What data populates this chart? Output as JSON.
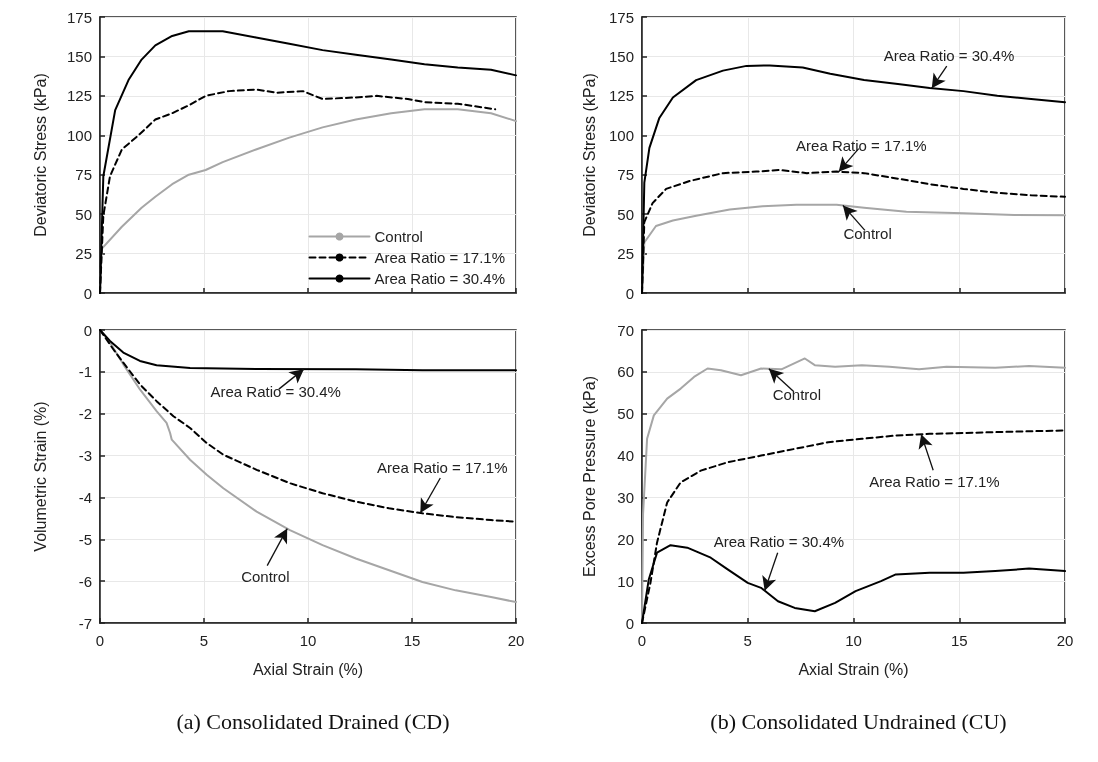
{
  "chart_data": [
    {
      "type": "line",
      "ylabel": "Deviatoric Stress (kPa)",
      "xlim": [
        0,
        20
      ],
      "xticks": [
        0,
        5,
        10,
        15,
        20
      ],
      "ylim": [
        0,
        175
      ],
      "yticks": [
        0,
        25,
        50,
        75,
        100,
        125,
        150,
        175
      ],
      "grid": true,
      "legend": "bottom right",
      "tick_labels": "y",
      "marker": "none",
      "series": [
        {
          "name": "Control",
          "color": "#a6a6a6",
          "line_style": "solid",
          "x": [
            0,
            0.08,
            1.05,
            2.0,
            2.66,
            3.47,
            4.27,
            5.08,
            5.9,
            7.5,
            9.1,
            10.7,
            12.3,
            14,
            15.6,
            17.2,
            18.8,
            20
          ],
          "values": [
            0,
            28,
            42,
            54,
            61,
            69,
            75,
            78,
            83,
            91,
            98.5,
            105,
            110,
            114,
            116.5,
            116.5,
            114,
            109
          ]
        },
        {
          "name": "Area Ratio = 17.1%",
          "color": "#000000",
          "line_style": "dashed",
          "x": [
            0,
            0.16,
            0.48,
            1.05,
            1.85,
            2.66,
            3.47,
            4.27,
            5.08,
            6.2,
            7.5,
            8.5,
            9.76,
            10.7,
            12.3,
            13.3,
            14.8,
            15.6,
            17.2,
            19
          ],
          "values": [
            0,
            49,
            74,
            91,
            100,
            110,
            114,
            119,
            125,
            128,
            129,
            127,
            128,
            123,
            124,
            125,
            123,
            121,
            120,
            116.5
          ]
        },
        {
          "name": "Area Ratio = 30.4%",
          "color": "#000000",
          "line_style": "solid",
          "x": [
            0,
            0.16,
            0.73,
            1.37,
            2.0,
            2.66,
            3.47,
            4.27,
            5.9,
            7.5,
            9.1,
            10.7,
            12.3,
            14,
            15.6,
            17.2,
            18.8,
            20
          ],
          "values": [
            0,
            74,
            116,
            135,
            148,
            157,
            163,
            166,
            166,
            162,
            158,
            154,
            151,
            148,
            145,
            143,
            141.5,
            138
          ]
        }
      ]
    },
    {
      "type": "line",
      "ylabel": "Deviatoric Stress (kPa)",
      "xlim": [
        0,
        20
      ],
      "xticks": [
        0,
        5,
        10,
        15,
        20
      ],
      "ylim": [
        0,
        175
      ],
      "yticks": [
        0,
        25,
        50,
        75,
        100,
        125,
        150,
        175
      ],
      "grid": true,
      "tick_labels": "y",
      "marker": "none",
      "series": [
        {
          "name": "Control",
          "color": "#a6a6a6",
          "line_style": "solid",
          "x": [
            0,
            0.11,
            0.66,
            1.46,
            2.56,
            4.15,
            5.7,
            7.3,
            9.2,
            10.5,
            12.5,
            15.2,
            17.6,
            20
          ],
          "values": [
            0,
            32,
            42.5,
            46,
            49,
            53,
            55,
            56,
            56,
            54,
            51.5,
            50.5,
            49.5,
            49.3
          ]
        },
        {
          "name": "Area Ratio = 17.1%",
          "color": "#000000",
          "line_style": "dashed",
          "x": [
            0,
            0.11,
            0.5,
            1.14,
            2.25,
            3.83,
            5.4,
            6.5,
            7.8,
            9.2,
            10.5,
            12.1,
            13.6,
            15.2,
            16.8,
            18.4,
            20
          ],
          "values": [
            0,
            45,
            57,
            66,
            71,
            76,
            77,
            78,
            76,
            77,
            76,
            72.5,
            69,
            66,
            63.5,
            62,
            61
          ]
        },
        {
          "name": "Area Ratio = 30.4%",
          "color": "#000000",
          "line_style": "solid",
          "x": [
            0,
            0.11,
            0.35,
            0.82,
            1.46,
            2.56,
            3.83,
            4.94,
            6.04,
            7.6,
            8.9,
            10.5,
            12.1,
            13.6,
            15.2,
            16.8,
            18.4,
            20
          ],
          "values": [
            0,
            70,
            92,
            111,
            124,
            135,
            141,
            144,
            144.3,
            143,
            139,
            135,
            132.5,
            130,
            128,
            125,
            123,
            121
          ]
        }
      ]
    },
    {
      "type": "line",
      "title": "(a) Consolidated Drained (CD)",
      "xlabel": "Axial Strain (%)",
      "ylabel": "Volumetric Strain (%)",
      "xlim": [
        0,
        20
      ],
      "xticks": [
        0,
        5,
        10,
        15,
        20
      ],
      "ylim": [
        -7,
        0
      ],
      "yticks": [
        -7,
        -6,
        -5,
        -4,
        -3,
        -2,
        -1,
        0
      ],
      "grid": true,
      "marker": "none",
      "series": [
        {
          "name": "Control",
          "color": "#a6a6a6",
          "line_style": "solid",
          "x": [
            0,
            0.48,
            1.12,
            1.92,
            2.72,
            3.2,
            3.37,
            3.45,
            4.33,
            5.13,
            5.93,
            7.53,
            9.13,
            10.7,
            12.3,
            13.9,
            15.5,
            17.1,
            18.8,
            20
          ],
          "values": [
            0,
            -0.3,
            -0.82,
            -1.42,
            -1.94,
            -2.22,
            -2.46,
            -2.62,
            -3.1,
            -3.46,
            -3.78,
            -4.34,
            -4.78,
            -5.14,
            -5.46,
            -5.74,
            -6.02,
            -6.22,
            -6.38,
            -6.5
          ]
        },
        {
          "name": "Area Ratio = 17.1%",
          "color": "#000000",
          "line_style": "dashed",
          "x": [
            0,
            0.64,
            1.12,
            1.92,
            2.72,
            3.53,
            4.33,
            5.13,
            5.93,
            7.53,
            9.13,
            10.7,
            12.3,
            13.9,
            15.5,
            17.1,
            18.8,
            20
          ],
          "values": [
            0,
            -0.46,
            -0.78,
            -1.3,
            -1.7,
            -2.06,
            -2.34,
            -2.7,
            -2.98,
            -3.34,
            -3.66,
            -3.9,
            -4.1,
            -4.26,
            -4.38,
            -4.47,
            -4.54,
            -4.58
          ]
        },
        {
          "name": "Area Ratio = 30.4%",
          "color": "#000000",
          "line_style": "solid",
          "x": [
            0,
            0.48,
            1.12,
            1.92,
            2.72,
            4.33,
            7.53,
            12.3,
            15.5,
            20
          ],
          "values": [
            0,
            -0.26,
            -0.54,
            -0.74,
            -0.84,
            -0.91,
            -0.93,
            -0.94,
            -0.96,
            -0.96
          ]
        }
      ]
    },
    {
      "type": "line",
      "title": "(b) Consolidated Undrained (CU)",
      "xlabel": "Axial Strain (%)",
      "ylabel": "Excess Pore Pressure (kPa)",
      "xlim": [
        0,
        20
      ],
      "xticks": [
        0,
        5,
        10,
        15,
        20
      ],
      "ylim": [
        0,
        70
      ],
      "yticks": [
        0,
        10,
        20,
        30,
        40,
        50,
        60,
        70
      ],
      "grid": true,
      "marker": "none",
      "series": [
        {
          "name": "Control",
          "color": "#a6a6a6",
          "line_style": "solid",
          "x": [
            0,
            0.05,
            0.24,
            0.56,
            1.19,
            1.83,
            2.46,
            3.1,
            3.73,
            4.68,
            5.63,
            6.59,
            7.7,
            8.17,
            9.13,
            10.4,
            11.7,
            13.1,
            14.4,
            16.7,
            18.3,
            20
          ],
          "values": [
            0,
            26,
            44,
            49.6,
            53.6,
            56,
            58.8,
            60.8,
            60.4,
            59.2,
            60.8,
            60.6,
            63.2,
            61.6,
            61.2,
            61.6,
            61.2,
            60.6,
            61.2,
            61,
            61.4,
            61
          ]
        },
        {
          "name": "Area Ratio = 17.1%",
          "color": "#000000",
          "line_style": "dashed",
          "x": [
            0,
            0.4,
            0.71,
            1.19,
            1.83,
            2.78,
            4.05,
            5.63,
            7.22,
            8.8,
            10.4,
            12,
            13.6,
            15.2,
            16.7,
            18.3,
            20
          ],
          "values": [
            0,
            9.6,
            19.2,
            28.8,
            33.6,
            36.4,
            38.4,
            40,
            41.6,
            43.2,
            44,
            44.8,
            45.2,
            45.4,
            45.6,
            45.8,
            46
          ]
        },
        {
          "name": "Area Ratio = 30.4%",
          "color": "#000000",
          "line_style": "solid",
          "x": [
            0,
            0.32,
            0.71,
            1.35,
            2.14,
            3.25,
            4.05,
            5,
            5.63,
            6.43,
            7.22,
            8.17,
            9.13,
            10.1,
            11.3,
            12,
            13.6,
            15.2,
            16.7,
            18.3,
            20
          ],
          "values": [
            0,
            10.4,
            16.8,
            18.6,
            18,
            15.6,
            12.8,
            9.6,
            8.4,
            5.2,
            3.6,
            2.8,
            4.8,
            7.6,
            10,
            11.6,
            12,
            12,
            12.4,
            13,
            12.4
          ]
        }
      ]
    }
  ]
}
